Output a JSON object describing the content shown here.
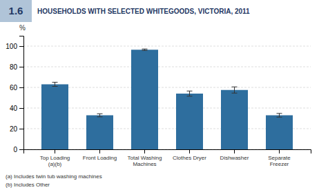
{
  "chart_data": {
    "type": "bar",
    "title": "HOUSEHOLDS WITH SELECTED WHITEGOODS, VICTORIA, 2011",
    "ylabel": "%",
    "annotations": [
      "1.6",
      "(a) Includes twin tub washing machines",
      "(b) Includes Other"
    ],
    "categories": [
      "Top Loading\n(a)(b)",
      "Front Loading",
      "Total Washing\nMachines",
      "Clothes Dryer",
      "Dishwasher",
      "Separate\nFreezer"
    ],
    "values": [
      63.0,
      33.0,
      96.5,
      54.0,
      57.5,
      33.0
    ],
    "errors": [
      2.0,
      1.5,
      0.7,
      2.5,
      3.0,
      1.8
    ],
    "color": "#2E6E9E",
    "ylim": [
      0,
      110
    ],
    "yticks": [
      0,
      20,
      40,
      60,
      80,
      100
    ],
    "grid": true
  }
}
